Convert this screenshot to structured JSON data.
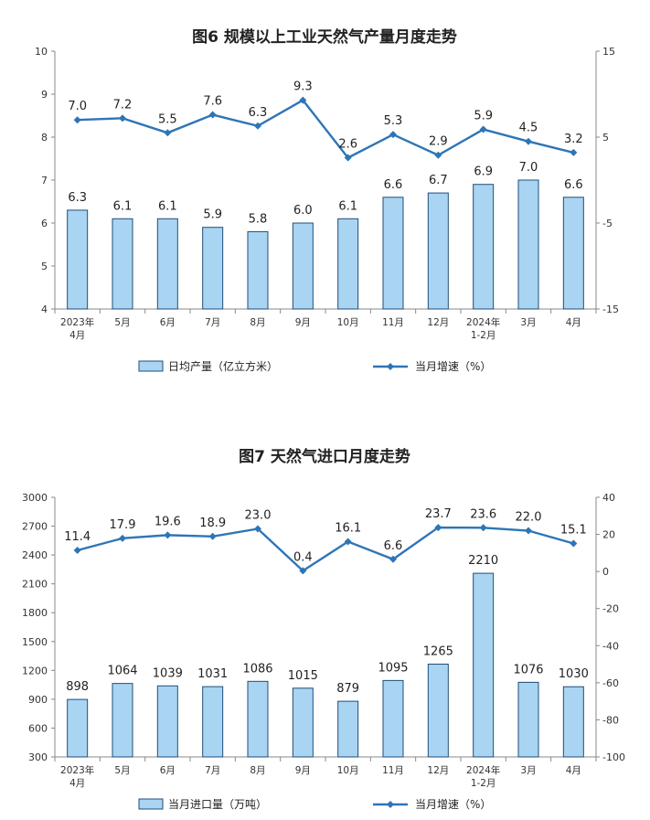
{
  "chart_data": [
    {
      "type": "bar+line",
      "title": "图6 规模以上工业天然气产量月度走势",
      "categories": [
        [
          "2023年",
          "4月"
        ],
        [
          "5月"
        ],
        [
          "6月"
        ],
        [
          "7月"
        ],
        [
          "8月"
        ],
        [
          "9月"
        ],
        [
          "10月"
        ],
        [
          "11月"
        ],
        [
          "12月"
        ],
        [
          "2024年",
          "1-2月"
        ],
        [
          "3月"
        ],
        [
          "4月"
        ]
      ],
      "bar_series": {
        "name": "日均产量（亿立方米）",
        "values": [
          6.3,
          6.1,
          6.1,
          5.9,
          5.8,
          6.0,
          6.1,
          6.6,
          6.7,
          6.9,
          7.0,
          6.6
        ],
        "labels": [
          "6.3",
          "6.1",
          "6.1",
          "5.9",
          "5.8",
          "6.0",
          "6.1",
          "6.6",
          "6.7",
          "6.9",
          "7.0",
          "6.6"
        ]
      },
      "line_series": {
        "name": "当月增速（%）",
        "values": [
          7.0,
          7.2,
          5.5,
          7.6,
          6.3,
          9.3,
          2.6,
          5.3,
          2.9,
          5.9,
          4.5,
          3.2
        ],
        "labels": [
          "7.0",
          "7.2",
          "5.5",
          "7.6",
          "6.3",
          "9.3",
          "2.6",
          "5.3",
          "2.9",
          "5.9",
          "4.5",
          "3.2"
        ]
      },
      "y_left": {
        "min": 4,
        "max": 10,
        "ticks": [
          "4",
          "5",
          "6",
          "7",
          "8",
          "9",
          "10"
        ]
      },
      "y_right": {
        "min": -15,
        "max": 15,
        "ticks": [
          "-15",
          "-5",
          "5",
          "15"
        ]
      },
      "bar_color": "#a9d4f2",
      "line_color": "#2e75b6",
      "legend_placement": "bottom",
      "grid": false
    },
    {
      "type": "bar+line",
      "title": "图7 天然气进口月度走势",
      "categories": [
        [
          "2023年",
          "4月"
        ],
        [
          "5月"
        ],
        [
          "6月"
        ],
        [
          "7月"
        ],
        [
          "8月"
        ],
        [
          "9月"
        ],
        [
          "10月"
        ],
        [
          "11月"
        ],
        [
          "12月"
        ],
        [
          "2024年",
          "1-2月"
        ],
        [
          "3月"
        ],
        [
          "4月"
        ]
      ],
      "bar_series": {
        "name": "当月进口量（万吨）",
        "values": [
          898,
          1064,
          1039,
          1031,
          1086,
          1015,
          879,
          1095,
          1265,
          2210,
          1076,
          1030
        ],
        "labels": [
          "898",
          "1064",
          "1039",
          "1031",
          "1086",
          "1015",
          "879",
          "1095",
          "1265",
          "2210",
          "1076",
          "1030"
        ]
      },
      "line_series": {
        "name": "当月增速（%）",
        "values": [
          11.4,
          17.9,
          19.6,
          18.9,
          23.0,
          0.4,
          16.1,
          6.6,
          23.7,
          23.6,
          22.0,
          15.1
        ],
        "labels": [
          "11.4",
          "17.9",
          "19.6",
          "18.9",
          "23.0",
          "0.4",
          "16.1",
          "6.6",
          "23.7",
          "23.6",
          "22.0",
          "15.1"
        ]
      },
      "y_left": {
        "min": 300,
        "max": 3000,
        "ticks": [
          "300",
          "600",
          "900",
          "1200",
          "1500",
          "1800",
          "2100",
          "2400",
          "2700",
          "3000"
        ]
      },
      "y_right": {
        "min": -100,
        "max": 40,
        "ticks": [
          "-100",
          "-80",
          "-60",
          "-40",
          "-20",
          "0",
          "20",
          "40"
        ]
      },
      "bar_color": "#a9d4f2",
      "line_color": "#2e75b6",
      "legend_placement": "bottom",
      "grid": false
    }
  ]
}
